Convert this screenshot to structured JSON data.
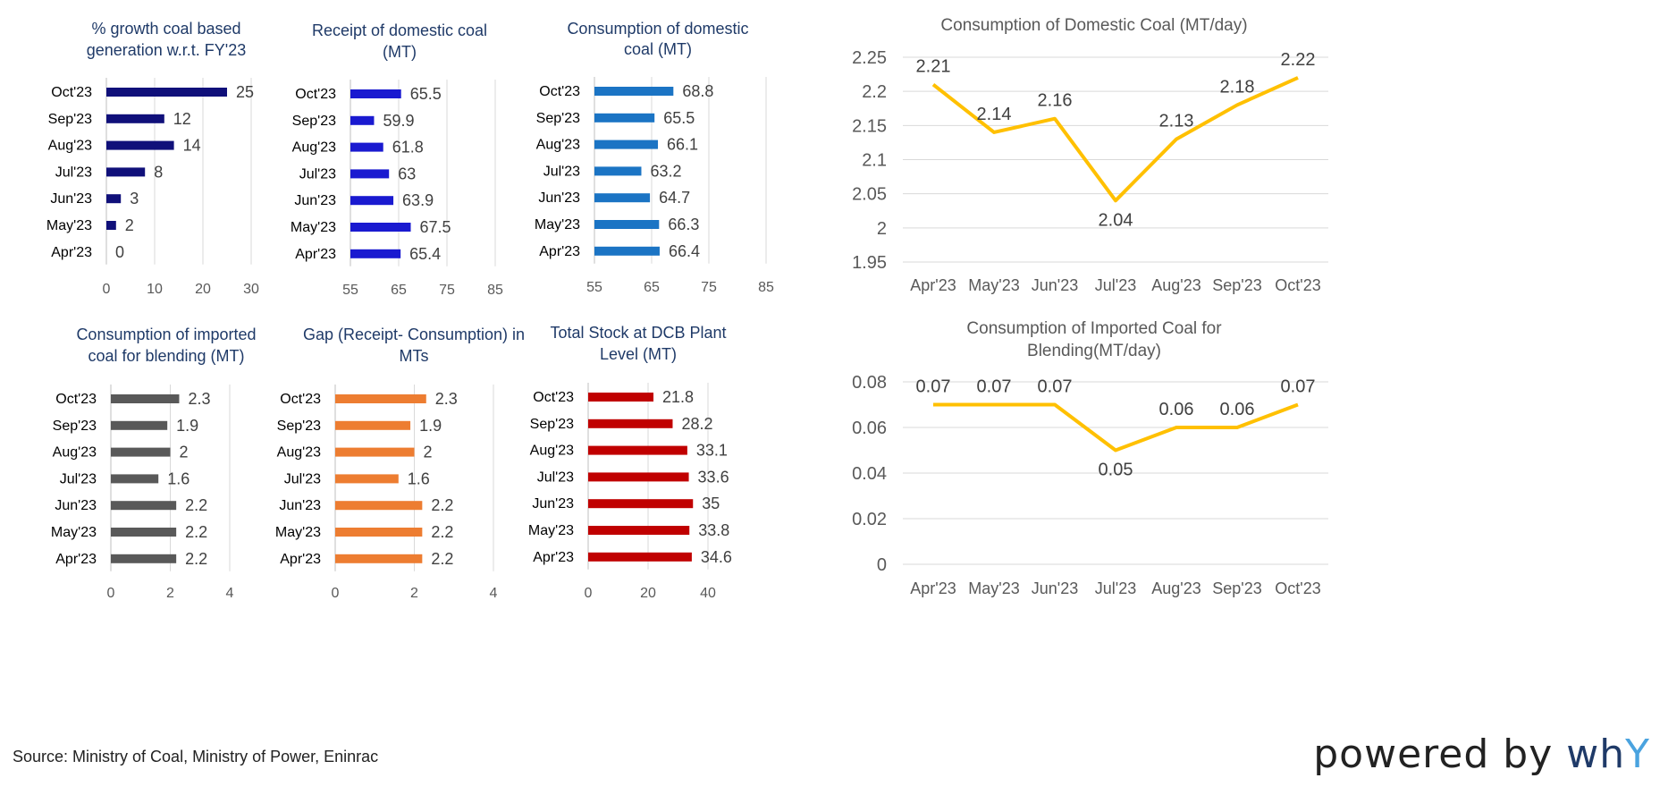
{
  "colors": {
    "title": "#1f3a68",
    "growth": "#10107a",
    "receipt": "#1a1ad0",
    "consumption": "#1b74c4",
    "imported": "#595959",
    "gap": "#ed7d31",
    "stock": "#c00000",
    "line": "#ffc000",
    "axis": "#7f7f7f",
    "grid": "#d9d9d9"
  },
  "footer": {
    "source": "Source: Ministry of Coal, Ministry of Power, Eninrac",
    "brand_prefix": "powered by ",
    "brand_wh": "wh",
    "brand_y": "Y"
  },
  "chart_data": [
    {
      "id": "growth",
      "type": "bar",
      "orientation": "horizontal",
      "title": "% growth coal based generation w.r.t. FY'23",
      "title_lines": [
        "% growth coal based",
        "generation w.r.t. FY'23"
      ],
      "categories": [
        "Oct'23",
        "Sep'23",
        "Aug'23",
        "Jul'23",
        "Jun'23",
        "May'23",
        "Apr'23"
      ],
      "values": [
        25,
        12,
        14,
        8,
        3,
        2,
        0
      ],
      "value_labels": [
        "25",
        "12",
        "14",
        "8",
        "3",
        "2",
        "0"
      ],
      "xlim": [
        0,
        30
      ],
      "ticks": [
        0,
        10,
        20,
        30
      ],
      "tick_labels": [
        "0",
        "10",
        "20",
        "30"
      ]
    },
    {
      "id": "receipt",
      "type": "bar",
      "orientation": "horizontal",
      "title": "Receipt of domestic coal (MT)",
      "title_lines": [
        "Receipt of domestic coal",
        "(MT)"
      ],
      "categories": [
        "Oct'23",
        "Sep'23",
        "Aug'23",
        "Jul'23",
        "Jun'23",
        "May'23",
        "Apr'23"
      ],
      "values": [
        65.5,
        59.9,
        61.8,
        63,
        63.9,
        67.5,
        65.4
      ],
      "value_labels": [
        "65.5",
        "59.9",
        "61.8",
        "63",
        "63.9",
        "67.5",
        "65.4"
      ],
      "xlim": [
        55,
        85
      ],
      "ticks": [
        55,
        65,
        75,
        85
      ],
      "tick_labels": [
        "55",
        "65",
        "75",
        "85"
      ]
    },
    {
      "id": "consumption",
      "type": "bar",
      "orientation": "horizontal",
      "title": "Consumption of domestic coal (MT)",
      "title_lines": [
        "Consumption of domestic",
        "coal (MT)"
      ],
      "categories": [
        "Oct'23",
        "Sep'23",
        "Aug'23",
        "Jul'23",
        "Jun'23",
        "May'23",
        "Apr'23"
      ],
      "values": [
        68.8,
        65.5,
        66.1,
        63.2,
        64.7,
        66.3,
        66.4
      ],
      "value_labels": [
        "68.8",
        "65.5",
        "66.1",
        "63.2",
        "64.7",
        "66.3",
        "66.4"
      ],
      "xlim": [
        55,
        85
      ],
      "ticks": [
        55,
        65,
        75,
        85
      ],
      "tick_labels": [
        "55",
        "65",
        "75",
        "85"
      ]
    },
    {
      "id": "imported",
      "type": "bar",
      "orientation": "horizontal",
      "title": "Consumption of imported coal for blending (MT)",
      "title_lines": [
        "Consumption of imported",
        "coal for blending (MT)"
      ],
      "categories": [
        "Oct'23",
        "Sep'23",
        "Aug'23",
        "Jul'23",
        "Jun'23",
        "May'23",
        "Apr'23"
      ],
      "values": [
        2.3,
        1.9,
        2,
        1.6,
        2.2,
        2.2,
        2.2
      ],
      "value_labels": [
        "2.3",
        "1.9",
        "2",
        "1.6",
        "2.2",
        "2.2",
        "2.2"
      ],
      "xlim": [
        0,
        4
      ],
      "ticks": [
        0,
        2,
        4
      ],
      "tick_labels": [
        "0",
        "2",
        "4"
      ]
    },
    {
      "id": "gap",
      "type": "bar",
      "orientation": "horizontal",
      "title": "Gap (Receipt- Consumption) in MTs",
      "title_lines": [
        "Gap (Receipt- Consumption) in",
        "MTs"
      ],
      "categories": [
        "Oct'23",
        "Sep'23",
        "Aug'23",
        "Jul'23",
        "Jun'23",
        "May'23",
        "Apr'23"
      ],
      "values": [
        2.3,
        1.9,
        2,
        1.6,
        2.2,
        2.2,
        2.2
      ],
      "value_labels": [
        "2.3",
        "1.9",
        "2",
        "1.6",
        "2.2",
        "2.2",
        "2.2"
      ],
      "xlim": [
        0,
        4
      ],
      "ticks": [
        0,
        2,
        4
      ],
      "tick_labels": [
        "0",
        "2",
        "4"
      ]
    },
    {
      "id": "stock",
      "type": "bar",
      "orientation": "horizontal",
      "title": "Total Stock at DCB Plant Level (MT)",
      "title_lines": [
        "Total Stock at DCB Plant",
        "Level (MT)"
      ],
      "categories": [
        "Oct'23",
        "Sep'23",
        "Aug'23",
        "Jul'23",
        "Jun'23",
        "May'23",
        "Apr'23"
      ],
      "values": [
        21.8,
        28.2,
        33.1,
        33.6,
        35,
        33.8,
        34.6
      ],
      "value_labels": [
        "21.8",
        "28.2",
        "33.1",
        "33.6",
        "35",
        "33.8",
        "34.6"
      ],
      "xlim": [
        0,
        40
      ],
      "ticks": [
        0,
        20,
        40
      ],
      "tick_labels": [
        "0",
        "20",
        "40"
      ]
    },
    {
      "id": "domestic_line",
      "type": "line",
      "title": "Consumption of Domestic Coal (MT/day)",
      "title_lines": [
        "Consumption of Domestic Coal (MT/day)"
      ],
      "categories": [
        "Apr'23",
        "May'23",
        "Jun'23",
        "Jul'23",
        "Aug'23",
        "Sep'23",
        "Oct'23"
      ],
      "values": [
        2.21,
        2.14,
        2.16,
        2.04,
        2.13,
        2.18,
        2.22
      ],
      "value_labels": [
        "2.21",
        "2.14",
        "2.16",
        "2.04",
        "2.13",
        "2.18",
        "2.22"
      ],
      "label_pos": [
        "above",
        "above",
        "above",
        "below",
        "above",
        "above",
        "above"
      ],
      "ylim": [
        1.95,
        2.25
      ],
      "yticks": [
        1.95,
        2,
        2.05,
        2.1,
        2.15,
        2.2,
        2.25
      ],
      "ytick_labels": [
        "1.95",
        "2",
        "2.05",
        "2.1",
        "2.15",
        "2.2",
        "2.25"
      ],
      "grid": true
    },
    {
      "id": "imported_line",
      "type": "line",
      "title": "Consumption of Imported Coal for Blending(MT/day)",
      "title_lines": [
        "Consumption of Imported Coal for",
        "Blending(MT/day)"
      ],
      "categories": [
        "Apr'23",
        "May'23",
        "Jun'23",
        "Jul'23",
        "Aug'23",
        "Sep'23",
        "Oct'23"
      ],
      "values": [
        0.07,
        0.07,
        0.07,
        0.05,
        0.06,
        0.06,
        0.07
      ],
      "value_labels": [
        "0.07",
        "0.07",
        "0.07",
        "0.05",
        "0.06",
        "0.06",
        "0.07"
      ],
      "label_pos": [
        "above",
        "above",
        "above",
        "below",
        "above",
        "above",
        "above"
      ],
      "ylim": [
        0,
        0.08
      ],
      "yticks": [
        0,
        0.02,
        0.04,
        0.06,
        0.08
      ],
      "ytick_labels": [
        "0",
        "0.02",
        "0.04",
        "0.06",
        "0.08"
      ],
      "grid": true
    }
  ]
}
